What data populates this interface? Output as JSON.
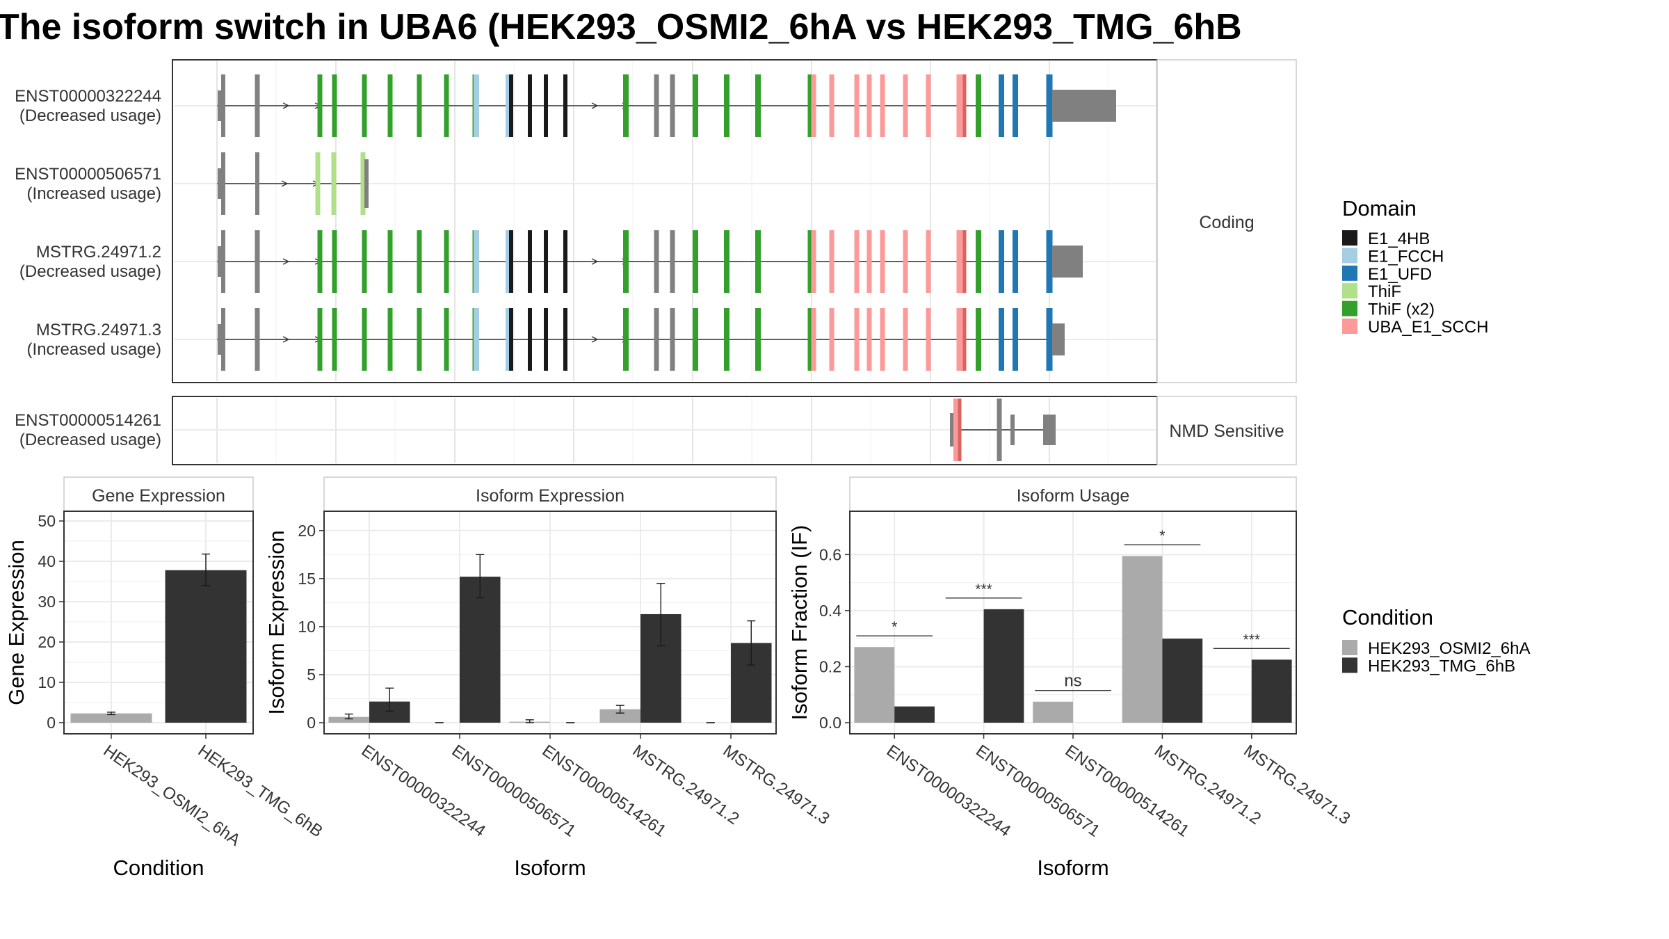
{
  "title": "The isoform switch in UBA6 (HEK293_OSMI2_6hA vs HEK293_TMG_6hB",
  "structure": {
    "transcripts": [
      {
        "id": "ENST00000322244",
        "usage": "(Decreased usage)"
      },
      {
        "id": "ENST00000506571",
        "usage": "(Increased usage)"
      },
      {
        "id": "MSTRG.24971.2",
        "usage": "(Decreased usage)"
      },
      {
        "id": "MSTRG.24971.3",
        "usage": "(Increased usage)"
      },
      {
        "id": "ENST00000514261",
        "usage": "(Decreased usage)"
      }
    ],
    "strip_coding": "Coding",
    "strip_nmd": "NMD Sensitive"
  },
  "legend_domain": {
    "title": "Domain",
    "items": [
      {
        "label": "E1_4HB",
        "color": "#1a1a1a"
      },
      {
        "label": "E1_FCCH",
        "color": "#a6cee3"
      },
      {
        "label": "E1_UFD",
        "color": "#1f78b4"
      },
      {
        "label": "ThiF",
        "color": "#b2df8a"
      },
      {
        "label": "ThiF (x2)",
        "color": "#33a02c"
      },
      {
        "label": "UBA_E1_SCCH",
        "color": "#fb9a99"
      }
    ]
  },
  "legend_condition": {
    "title": "Condition",
    "items": [
      {
        "label": "HEK293_OSMI2_6hA",
        "color": "#aaaaaa"
      },
      {
        "label": "HEK293_TMG_6hB",
        "color": "#333333"
      }
    ]
  },
  "chart_data": [
    {
      "type": "bar",
      "strip": "Gene Expression",
      "xlabel": "Condition",
      "ylabel": "Gene Expression",
      "ylim": [
        0,
        50
      ],
      "yticks": [
        0,
        10,
        20,
        30,
        40,
        50
      ],
      "categories": [
        "HEK293_OSMI2_6hA",
        "HEK293_TMG_6hB"
      ],
      "values": [
        2.3,
        37.8
      ],
      "err": [
        [
          2.0,
          2.6
        ],
        [
          34.0,
          41.8
        ]
      ],
      "colors": [
        "#aaaaaa",
        "#333333"
      ]
    },
    {
      "type": "bar",
      "strip": "Isoform Expression",
      "xlabel": "Isoform",
      "ylabel": "Isoform Expression",
      "ylim": [
        0,
        21
      ],
      "yticks": [
        0,
        5,
        10,
        15,
        20
      ],
      "categories": [
        "ENST00000322244",
        "ENST00000506571",
        "ENST00000514261",
        "MSTRG.24971.2",
        "MSTRG.24971.3"
      ],
      "series": [
        {
          "name": "HEK293_OSMI2_6hA",
          "values": [
            0.6,
            0.0,
            0.1,
            1.4,
            0.0
          ],
          "err": [
            [
              0.4,
              0.9
            ],
            [
              0,
              0
            ],
            [
              0.0,
              0.3
            ],
            [
              1.0,
              1.8
            ],
            [
              0,
              0
            ]
          ]
        },
        {
          "name": "HEK293_TMG_6hB",
          "values": [
            2.2,
            15.2,
            0.0,
            11.3,
            8.3
          ],
          "err": [
            [
              1.2,
              3.6
            ],
            [
              13.0,
              17.5
            ],
            [
              0,
              0
            ],
            [
              8.0,
              14.5
            ],
            [
              6.0,
              10.6
            ]
          ]
        }
      ]
    },
    {
      "type": "bar",
      "strip": "Isoform Usage",
      "xlabel": "Isoform",
      "ylabel": "Isoform Fraction (IF)",
      "ylim": [
        0,
        0.72
      ],
      "yticks": [
        0.0,
        0.2,
        0.4,
        0.6
      ],
      "ytick_labels": [
        "0.0",
        "0.2",
        "0.4",
        "0.6"
      ],
      "categories": [
        "ENST00000322244",
        "ENST00000506571",
        "ENST00000514261",
        "MSTRG.24971.2",
        "MSTRG.24971.3"
      ],
      "series": [
        {
          "name": "HEK293_OSMI2_6hA",
          "values": [
            0.27,
            0.0,
            0.075,
            0.595,
            0.0
          ]
        },
        {
          "name": "HEK293_TMG_6hB",
          "values": [
            0.058,
            0.405,
            0.0,
            0.3,
            0.225
          ]
        }
      ],
      "annotations": [
        "*",
        "***",
        "ns",
        "*",
        "***"
      ]
    }
  ]
}
